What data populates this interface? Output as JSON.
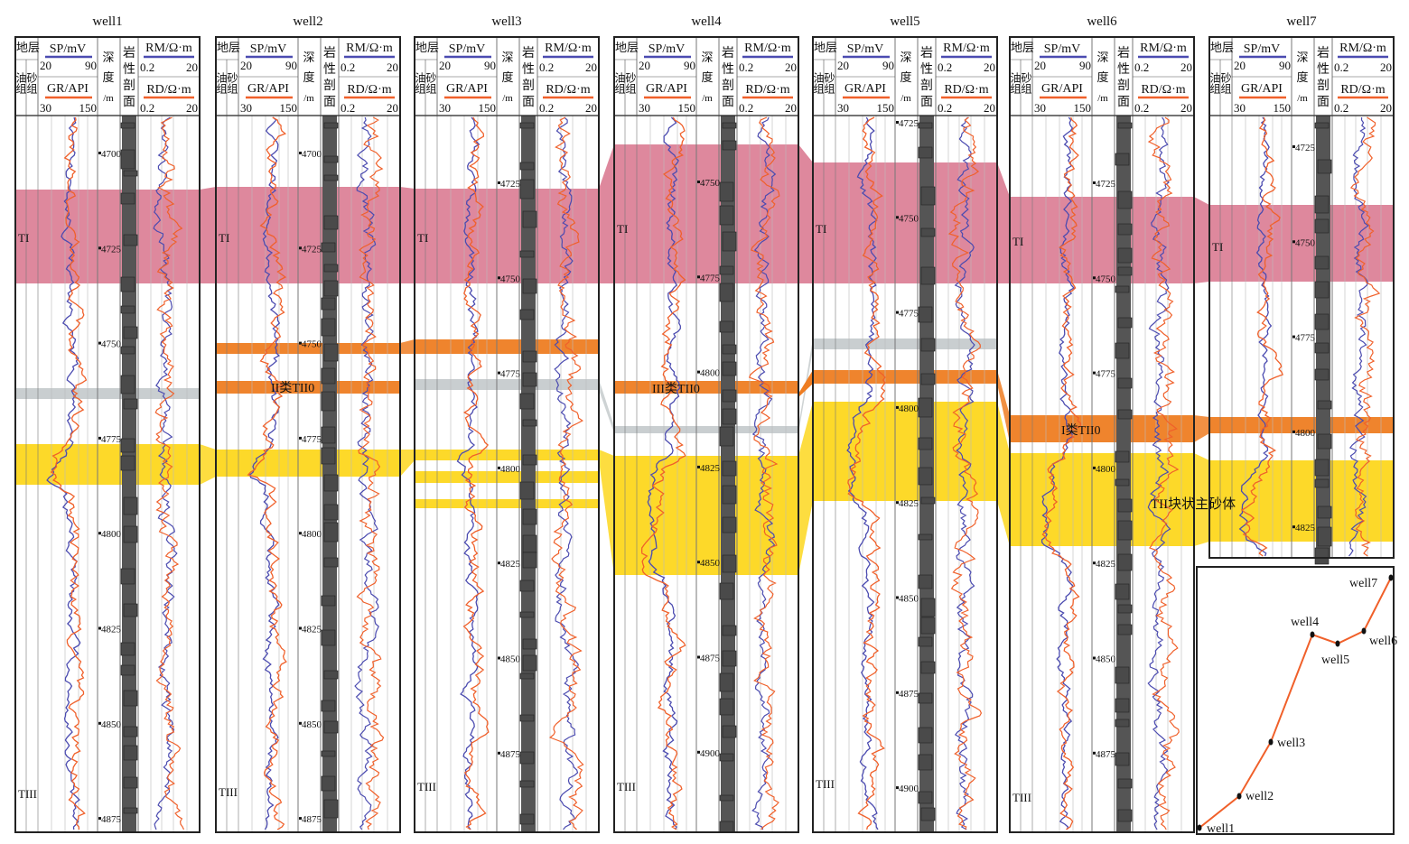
{
  "header": {
    "strata": "地层",
    "oil_group": "油组",
    "sand_group": "砂组",
    "sp": {
      "label": "SP/mV",
      "min": "20",
      "max": "90",
      "color": "#4b4bb0"
    },
    "gr": {
      "label": "GR/API",
      "min": "30",
      "max": "150",
      "color": "#f0602a"
    },
    "depth_chars": [
      "深",
      "度",
      "/m"
    ],
    "litho_chars": [
      "岩",
      "性",
      "剖",
      "面"
    ],
    "rm": {
      "label": "RM/Ω·m",
      "min": "0.2",
      "max": "20",
      "color": "#4b4bb0"
    },
    "rd": {
      "label": "RD/Ω·m",
      "min": "0.2",
      "max": "20",
      "color": "#f0602a"
    }
  },
  "wells": [
    {
      "name": "well1",
      "depths": [
        "4700",
        "4725",
        "4750",
        "4775",
        "4800",
        "4825",
        "4850",
        "4875"
      ],
      "top_zone": "TI",
      "bottom_zone": "TIII"
    },
    {
      "name": "well2",
      "depths": [
        "4700",
        "4725",
        "4750",
        "4775",
        "4800",
        "4825",
        "4850",
        "4875"
      ],
      "top_zone": "TI",
      "bottom_zone": "TIII"
    },
    {
      "name": "well3",
      "depths": [
        "4725",
        "4750",
        "4775",
        "4800",
        "4825",
        "4850",
        "4875"
      ],
      "top_zone": "TI",
      "bottom_zone": "TIII"
    },
    {
      "name": "well4",
      "depths": [
        "4750",
        "4775",
        "4800",
        "4825",
        "4850",
        "4875",
        "4900"
      ],
      "top_zone": "TI",
      "bottom_zone": "TIII"
    },
    {
      "name": "well5",
      "depths": [
        "4725",
        "4750",
        "4775",
        "4800",
        "4825",
        "4850",
        "4875",
        "4900"
      ],
      "top_zone": "TI",
      "bottom_zone": "TIII"
    },
    {
      "name": "well6",
      "depths": [
        "4725",
        "4750",
        "4775",
        "4800",
        "4825",
        "4850",
        "4875"
      ],
      "top_zone": "TI",
      "bottom_zone": "TIII"
    },
    {
      "name": "well7",
      "depths": [
        "4725",
        "4750",
        "4775",
        "4800",
        "4825"
      ],
      "top_zone": "TI",
      "bottom_zone": ""
    }
  ],
  "annotations": {
    "class2": "II类TII0",
    "class3": "III类TII0",
    "class1": "I类TII0",
    "main_sand": "TII块状主砂体"
  },
  "zone_colors": {
    "TI": "#d8738c",
    "TII0": "#ee7d22",
    "tight": "#c6cbcd",
    "sand": "#fdd71e"
  },
  "location_map": {
    "wells": [
      "well1",
      "well2",
      "well3",
      "well4",
      "well5",
      "well6",
      "well7"
    ],
    "line_color": "#f0602a"
  }
}
